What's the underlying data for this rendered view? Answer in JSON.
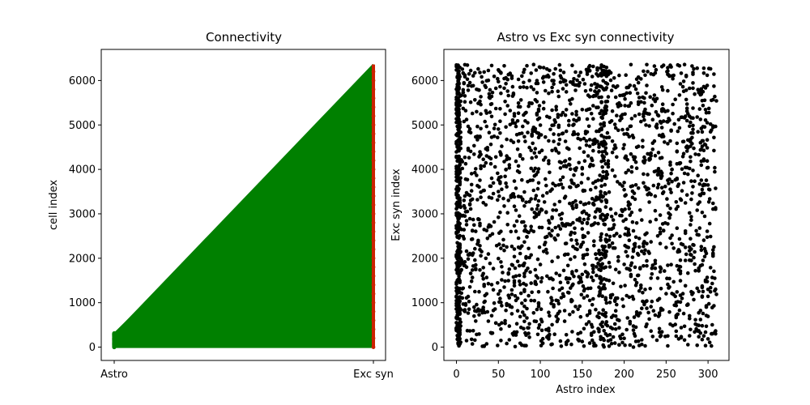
{
  "chart_data": [
    {
      "type": "line",
      "title": "Connectivity",
      "xlabel": "",
      "ylabel": "cell index",
      "x_categories": [
        "Astro",
        "Exc syn"
      ],
      "ylim": [
        -300,
        6700
      ],
      "yticks": [
        0,
        1000,
        2000,
        3000,
        4000,
        5000,
        6000
      ],
      "astro_index_range": [
        0,
        310
      ],
      "exc_syn_index_range": [
        0,
        6360
      ],
      "series": [
        {
          "color": "#008000",
          "description_points": "Astro endpoints"
        },
        {
          "color": "#cc2200",
          "description_points": "Exc syn endpoints"
        }
      ],
      "grid": false
    },
    {
      "type": "scatter",
      "title": "Astro vs Exc syn connectivity",
      "xlabel": "Astro index",
      "ylabel": "Exc syn index",
      "xlim": [
        -15,
        325
      ],
      "ylim": [
        -300,
        6700
      ],
      "xticks": [
        0,
        50,
        100,
        150,
        200,
        250,
        300
      ],
      "yticks": [
        0,
        1000,
        2000,
        3000,
        4000,
        5000,
        6000
      ],
      "x_range": [
        0,
        310
      ],
      "y_range": [
        0,
        6360
      ],
      "approx_point_count": 6360,
      "dense_columns": [
        0,
        3,
        172,
        178
      ],
      "point_color": "#000000",
      "grid": false
    }
  ]
}
